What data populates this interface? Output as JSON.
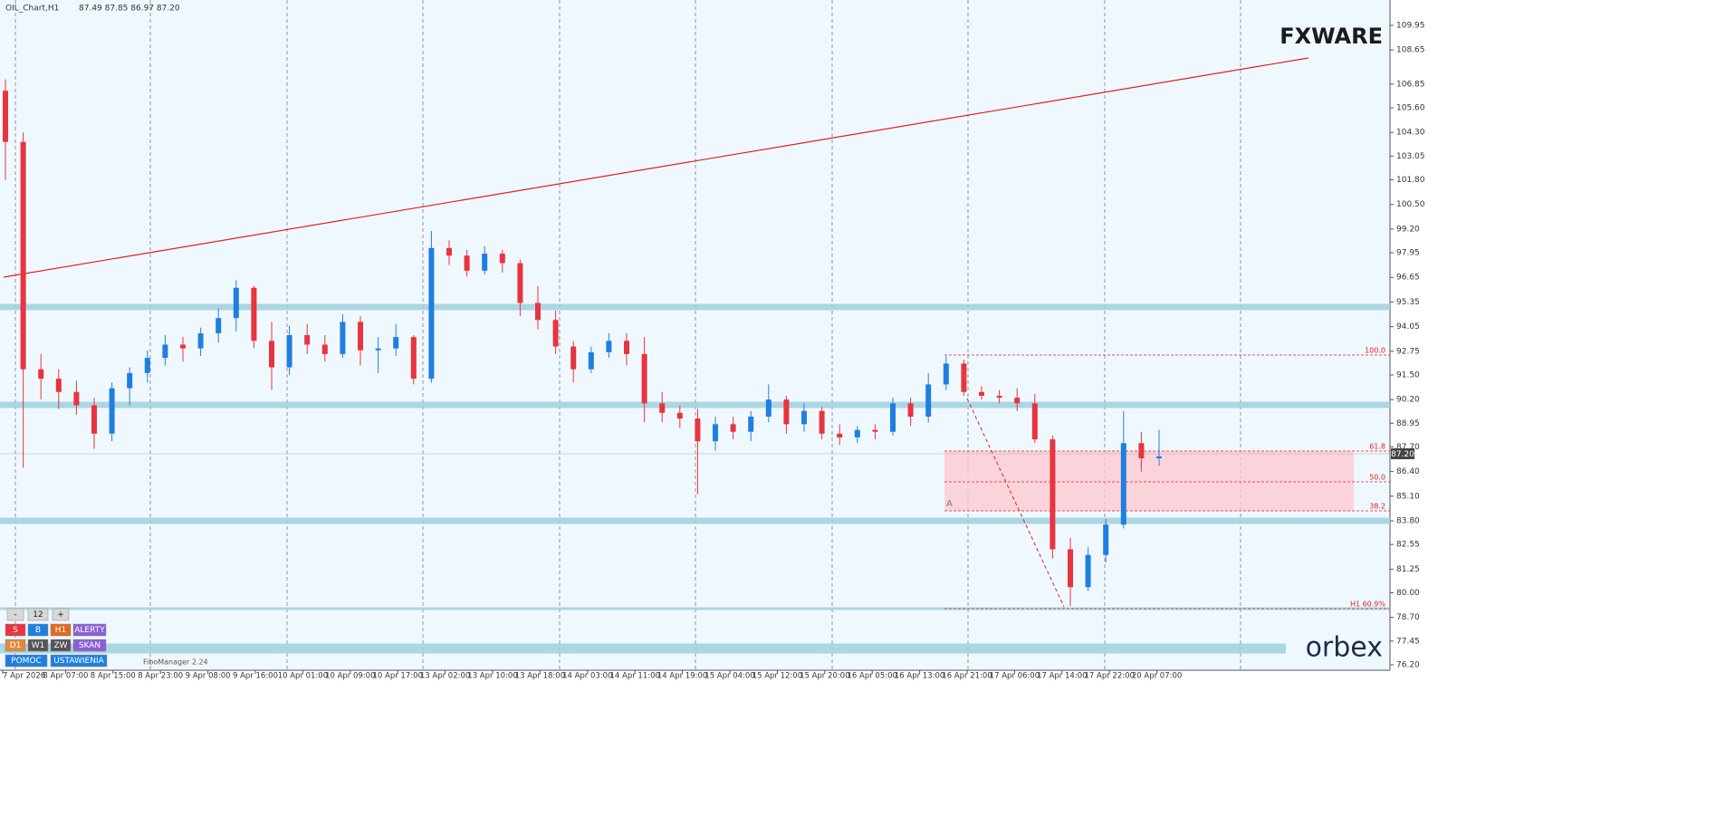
{
  "header": {
    "symbol": "OIL_Chart,H1",
    "ohlc": "87.49 87.85 86.97 87.20"
  },
  "price_axis": {
    "labels": [
      "109.95",
      "108.65",
      "106.85",
      "105.60",
      "104.30",
      "103.05",
      "101.80",
      "100.50",
      "99.20",
      "97.95",
      "96.65",
      "95.35",
      "94.05",
      "92.75",
      "91.50",
      "90.20",
      "88.95",
      "87.70",
      "86.40",
      "85.10",
      "83.80",
      "82.55",
      "81.25",
      "80.00",
      "78.70",
      "77.45",
      "76.20"
    ],
    "current": "87.20"
  },
  "time_axis": {
    "labels": [
      "7 Apr 2026",
      "8 Apr 07:00",
      "8 Apr 15:00",
      "8 Apr 23:00",
      "9 Apr 08:00",
      "9 Apr 16:00",
      "10 Apr 01:00",
      "10 Apr 09:00",
      "10 Apr 17:00",
      "13 Apr 02:00",
      "13 Apr 10:00",
      "13 Apr 18:00",
      "14 Apr 03:00",
      "14 Apr 11:00",
      "14 Apr 19:00",
      "15 Apr 04:00",
      "15 Apr 12:00",
      "15 Apr 20:00",
      "16 Apr 05:00",
      "16 Apr 13:00",
      "16 Apr 21:00",
      "17 Apr 06:00",
      "17 Apr 14:00",
      "17 Apr 22:00",
      "20 Apr 07:00"
    ]
  },
  "candles": [
    [
      106.5,
      107.1,
      101.8,
      103.8
    ],
    [
      103.8,
      104.3,
      86.6,
      91.8
    ],
    [
      91.8,
      92.6,
      90.2,
      91.3
    ],
    [
      91.3,
      91.8,
      89.7,
      90.6
    ],
    [
      90.6,
      91.2,
      89.4,
      89.9
    ],
    [
      89.9,
      90.3,
      87.6,
      88.4
    ],
    [
      88.4,
      91.1,
      88.0,
      90.8
    ],
    [
      90.8,
      91.9,
      89.9,
      91.6
    ],
    [
      91.6,
      92.8,
      91.1,
      92.4
    ],
    [
      92.4,
      93.6,
      92.0,
      93.1
    ],
    [
      93.1,
      93.5,
      92.2,
      92.9
    ],
    [
      92.9,
      94.0,
      92.5,
      93.7
    ],
    [
      93.7,
      95.0,
      93.2,
      94.5
    ],
    [
      94.5,
      96.5,
      93.8,
      96.1
    ],
    [
      96.1,
      96.2,
      92.9,
      93.3
    ],
    [
      93.3,
      94.3,
      90.7,
      91.9
    ],
    [
      91.9,
      94.1,
      91.5,
      93.6
    ],
    [
      93.6,
      94.2,
      92.6,
      93.1
    ],
    [
      93.1,
      93.6,
      92.2,
      92.6
    ],
    [
      92.6,
      94.7,
      92.4,
      94.3
    ],
    [
      94.3,
      94.6,
      92.0,
      92.8
    ],
    [
      92.8,
      93.5,
      91.6,
      92.9
    ],
    [
      92.9,
      94.2,
      92.5,
      93.5
    ],
    [
      93.5,
      93.6,
      91.0,
      91.3
    ],
    [
      91.3,
      99.1,
      91.1,
      98.2
    ],
    [
      98.2,
      98.6,
      97.3,
      97.8
    ],
    [
      97.8,
      98.1,
      96.7,
      97.0
    ],
    [
      97.0,
      98.3,
      96.8,
      97.9
    ],
    [
      97.9,
      98.1,
      96.9,
      97.4
    ],
    [
      97.4,
      97.6,
      94.6,
      95.3
    ],
    [
      95.3,
      96.2,
      93.9,
      94.4
    ],
    [
      94.4,
      94.9,
      92.6,
      93.0
    ],
    [
      93.0,
      93.3,
      91.1,
      91.8
    ],
    [
      91.8,
      93.0,
      91.6,
      92.7
    ],
    [
      92.7,
      93.7,
      92.4,
      93.3
    ],
    [
      93.3,
      93.7,
      92.0,
      92.6
    ],
    [
      92.6,
      93.5,
      89.0,
      90.0
    ],
    [
      90.0,
      90.6,
      89.0,
      89.5
    ],
    [
      89.5,
      89.9,
      88.7,
      89.2
    ],
    [
      89.2,
      89.7,
      85.2,
      88.0
    ],
    [
      88.0,
      89.3,
      87.5,
      88.9
    ],
    [
      88.9,
      89.3,
      88.1,
      88.5
    ],
    [
      88.5,
      89.6,
      88.0,
      89.3
    ],
    [
      89.3,
      91.0,
      89.0,
      90.2
    ],
    [
      90.2,
      90.4,
      88.4,
      88.9
    ],
    [
      88.9,
      90.0,
      88.5,
      89.6
    ],
    [
      89.6,
      89.8,
      88.1,
      88.4
    ],
    [
      88.4,
      88.9,
      87.8,
      88.2
    ],
    [
      88.2,
      88.8,
      87.9,
      88.6
    ],
    [
      88.6,
      88.9,
      88.1,
      88.5
    ],
    [
      88.5,
      90.3,
      88.3,
      90.0
    ],
    [
      90.0,
      90.3,
      88.8,
      89.3
    ],
    [
      89.3,
      91.6,
      89.0,
      91.0
    ],
    [
      91.0,
      92.5,
      90.7,
      92.1
    ],
    [
      92.1,
      92.3,
      90.4,
      90.6
    ],
    [
      90.6,
      90.9,
      90.2,
      90.4
    ],
    [
      90.4,
      90.7,
      90.0,
      90.3
    ],
    [
      90.3,
      90.8,
      89.6,
      90.0
    ],
    [
      90.0,
      90.5,
      87.9,
      88.1
    ],
    [
      88.1,
      88.3,
      81.8,
      82.3
    ],
    [
      82.3,
      82.9,
      79.3,
      80.3
    ],
    [
      80.3,
      82.4,
      80.1,
      82.0
    ],
    [
      82.0,
      83.9,
      81.6,
      83.6
    ],
    [
      83.6,
      89.6,
      83.4,
      87.9
    ],
    [
      87.9,
      88.5,
      86.4,
      87.1
    ],
    [
      87.1,
      88.6,
      86.7,
      87.2
    ]
  ],
  "fibo": {
    "levels": [
      "100.0",
      "61.8",
      "50.0",
      "38.2"
    ],
    "h1": "H1 60.9%",
    "point": "A"
  },
  "buttons": {
    "zoom": [
      "-",
      "12",
      "+"
    ],
    "row1": [
      "S",
      "B",
      "H1",
      "ALERTY"
    ],
    "row2": [
      "D1",
      "W1",
      "ZW",
      "SKAN"
    ],
    "row3": [
      "POMOC",
      "USTAWIENIA"
    ]
  },
  "tool": "FiboManager 2.24",
  "logos": {
    "fx": "FXWARE",
    "broker": "orbex"
  }
}
